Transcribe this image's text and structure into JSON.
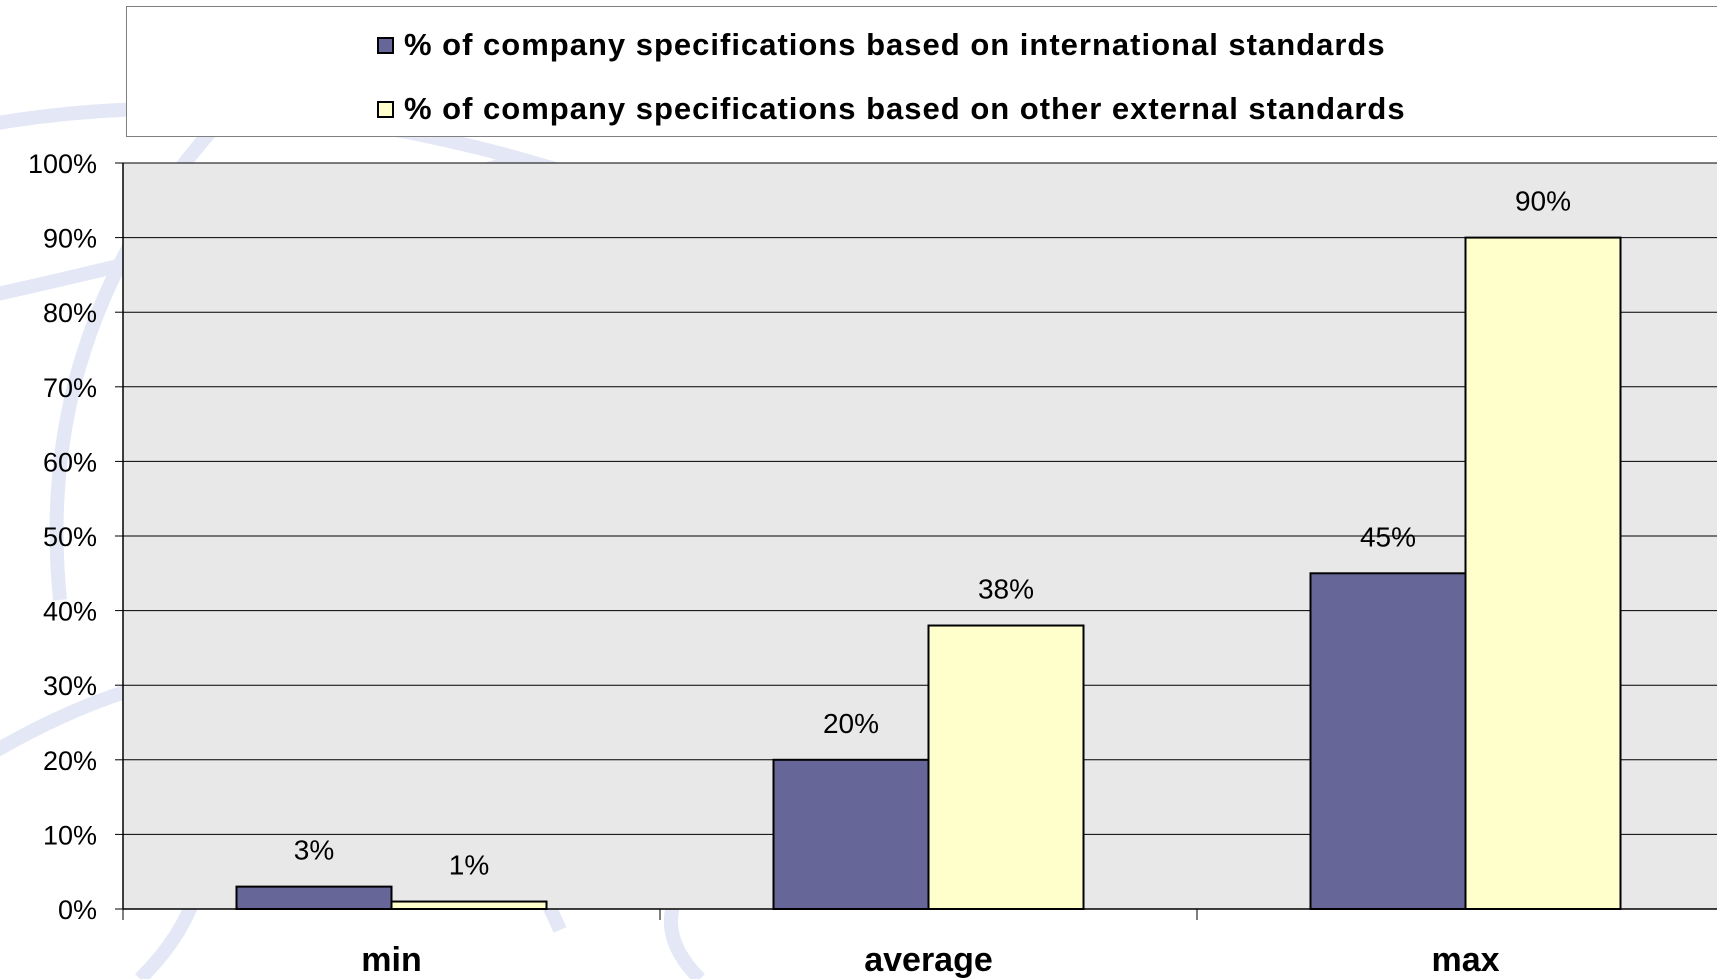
{
  "chart_data": {
    "type": "bar",
    "categories": [
      "min",
      "average",
      "max"
    ],
    "series": [
      {
        "name": "% of company specifications based on international standards",
        "values": [
          3,
          20,
          45
        ],
        "labels": [
          "3%",
          "20%",
          "45%"
        ],
        "color": "#666699"
      },
      {
        "name": "% of company specifications based on other external standards",
        "values": [
          1,
          38,
          90
        ],
        "labels": [
          "1%",
          "38%",
          "90%"
        ],
        "color": "#ffffcc"
      }
    ],
    "ylim": [
      0,
      100
    ],
    "yticks": [
      "0%",
      "10%",
      "20%",
      "30%",
      "40%",
      "50%",
      "60%",
      "70%",
      "80%",
      "90%",
      "100%"
    ],
    "grid": true,
    "legend_position": "top",
    "plot_background": "#e8e8e8"
  }
}
